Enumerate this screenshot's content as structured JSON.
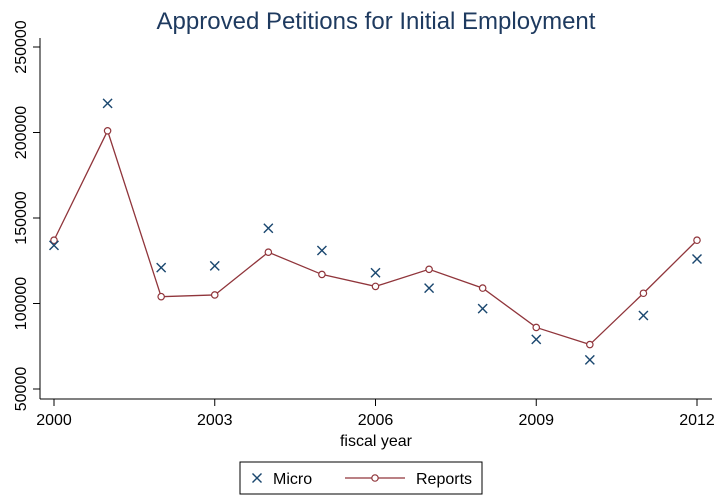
{
  "colors": {
    "micro": "#1a476f",
    "reports": "#90353b",
    "title": "#1e3a5f",
    "axis": "#000000"
  },
  "chart_data": {
    "type": "scatter",
    "title": "Approved Petitions for Initial Employment",
    "xlabel": "fiscal year",
    "ylabel": "",
    "xlim": [
      2000,
      2012
    ],
    "ylim": [
      50000,
      250000
    ],
    "xticks": [
      2000,
      2003,
      2006,
      2009,
      2012
    ],
    "xtick_labels": [
      "2000",
      "2003",
      "2006",
      "2009",
      "2012"
    ],
    "yticks": [
      50000,
      100000,
      150000,
      200000,
      250000
    ],
    "ytick_labels": [
      "50000",
      "100000",
      "150000",
      "200000",
      "250000"
    ],
    "grid": false,
    "legend": "bottom",
    "x": [
      2000,
      2001,
      2002,
      2003,
      2004,
      2005,
      2006,
      2007,
      2008,
      2009,
      2010,
      2011,
      2012
    ],
    "series": [
      {
        "name": "Micro",
        "type": "scatter",
        "marker": "x",
        "values": [
          134000,
          217000,
          121000,
          122000,
          144000,
          131000,
          118000,
          109000,
          97000,
          79000,
          67000,
          93000,
          126000
        ]
      },
      {
        "name": "Reports",
        "type": "line",
        "marker": "circle",
        "values": [
          137000,
          201000,
          104000,
          105000,
          130000,
          117000,
          110000,
          120000,
          109000,
          86000,
          76000,
          106000,
          137000
        ]
      }
    ]
  }
}
